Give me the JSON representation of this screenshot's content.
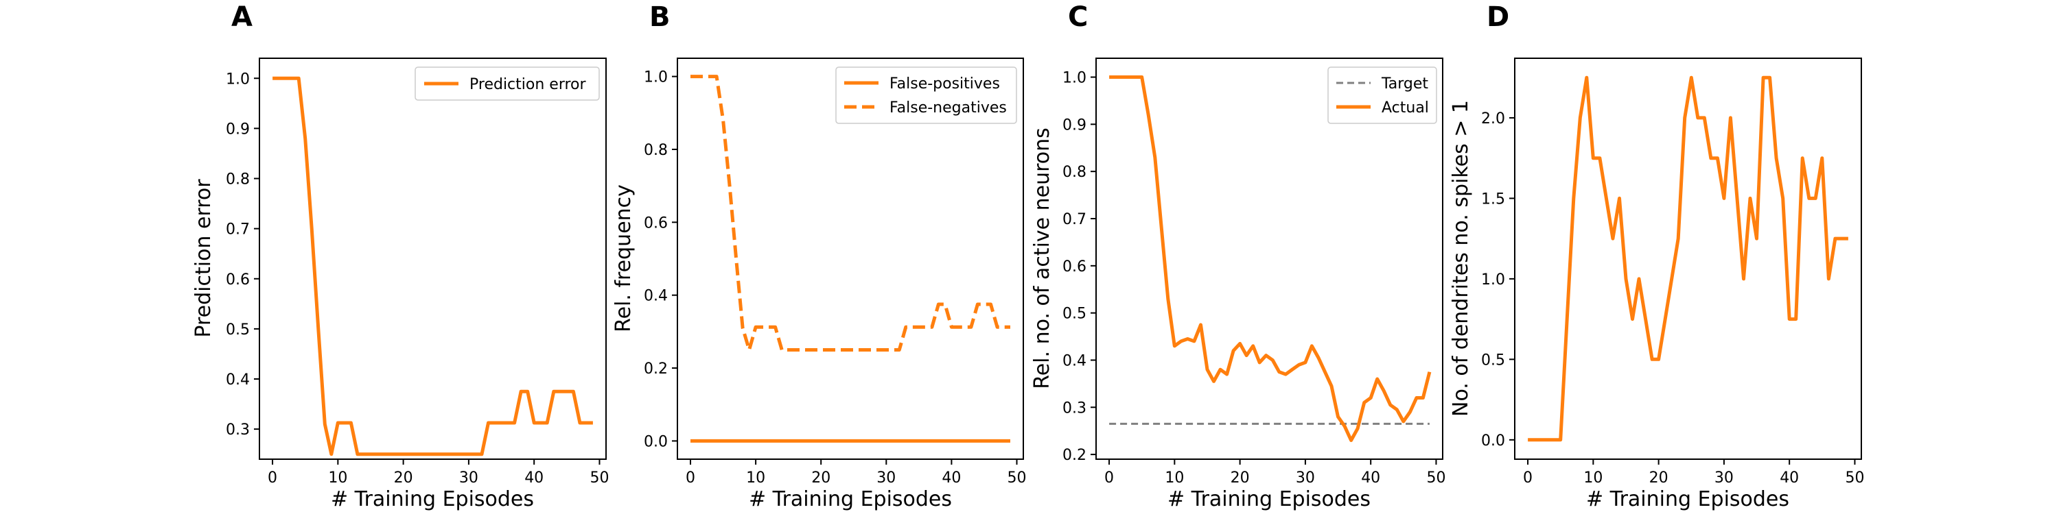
{
  "chart_data": [
    {
      "panel": "A",
      "type": "line",
      "xlabel": "# Training Episodes",
      "ylabel": "Prediction error",
      "xlim": [
        -2,
        51
      ],
      "ylim": [
        0.24,
        1.04
      ],
      "xticks": [
        0,
        10,
        20,
        30,
        40,
        50
      ],
      "yticks": [
        0.3,
        0.4,
        0.5,
        0.6,
        0.7,
        0.8,
        0.9,
        1.0
      ],
      "ytick_labels": [
        "0.3",
        "0.4",
        "0.5",
        "0.6",
        "0.7",
        "0.8",
        "0.9",
        "1.0"
      ],
      "legend": "top-right",
      "series": [
        {
          "name": "Prediction error",
          "color": "#ff7f0e",
          "dash": "solid",
          "x": [
            0,
            1,
            2,
            3,
            4,
            5,
            6,
            7,
            8,
            9,
            10,
            11,
            12,
            13,
            14,
            15,
            16,
            17,
            18,
            19,
            20,
            21,
            22,
            23,
            24,
            25,
            26,
            27,
            28,
            29,
            30,
            31,
            32,
            33,
            34,
            35,
            36,
            37,
            38,
            39,
            40,
            41,
            42,
            43,
            44,
            45,
            46,
            47,
            48,
            49
          ],
          "y": [
            1.0,
            1.0,
            1.0,
            1.0,
            1.0,
            0.88,
            0.7,
            0.5,
            0.31,
            0.25,
            0.3125,
            0.3125,
            0.3125,
            0.25,
            0.25,
            0.25,
            0.25,
            0.25,
            0.25,
            0.25,
            0.25,
            0.25,
            0.25,
            0.25,
            0.25,
            0.25,
            0.25,
            0.25,
            0.25,
            0.25,
            0.25,
            0.25,
            0.25,
            0.3125,
            0.3125,
            0.3125,
            0.3125,
            0.3125,
            0.375,
            0.375,
            0.3125,
            0.3125,
            0.3125,
            0.375,
            0.375,
            0.375,
            0.375,
            0.3125,
            0.3125,
            0.3125
          ]
        }
      ]
    },
    {
      "panel": "B",
      "type": "line",
      "xlabel": "# Training Episodes",
      "ylabel": "Rel. frequency",
      "xlim": [
        -2,
        51
      ],
      "ylim": [
        -0.05,
        1.05
      ],
      "xticks": [
        0,
        10,
        20,
        30,
        40,
        50
      ],
      "yticks": [
        0.0,
        0.2,
        0.4,
        0.6,
        0.8,
        1.0
      ],
      "ytick_labels": [
        "0.0",
        "0.2",
        "0.4",
        "0.6",
        "0.8",
        "1.0"
      ],
      "legend": "top-right",
      "series": [
        {
          "name": "False-positives",
          "color": "#ff7f0e",
          "dash": "solid",
          "x": [
            0,
            1,
            2,
            3,
            4,
            5,
            6,
            7,
            8,
            9,
            10,
            11,
            12,
            13,
            14,
            15,
            16,
            17,
            18,
            19,
            20,
            21,
            22,
            23,
            24,
            25,
            26,
            27,
            28,
            29,
            30,
            31,
            32,
            33,
            34,
            35,
            36,
            37,
            38,
            39,
            40,
            41,
            42,
            43,
            44,
            45,
            46,
            47,
            48,
            49
          ],
          "y": [
            0,
            0,
            0,
            0,
            0,
            0,
            0,
            0,
            0,
            0,
            0,
            0,
            0,
            0,
            0,
            0,
            0,
            0,
            0,
            0,
            0,
            0,
            0,
            0,
            0,
            0,
            0,
            0,
            0,
            0,
            0,
            0,
            0,
            0,
            0,
            0,
            0,
            0,
            0,
            0,
            0,
            0,
            0,
            0,
            0,
            0,
            0,
            0,
            0,
            0
          ]
        },
        {
          "name": "False-negatives",
          "color": "#ff7f0e",
          "dash": "dashed",
          "x": [
            0,
            1,
            2,
            3,
            4,
            5,
            6,
            7,
            8,
            9,
            10,
            11,
            12,
            13,
            14,
            15,
            16,
            17,
            18,
            19,
            20,
            21,
            22,
            23,
            24,
            25,
            26,
            27,
            28,
            29,
            30,
            31,
            32,
            33,
            34,
            35,
            36,
            37,
            38,
            39,
            40,
            41,
            42,
            43,
            44,
            45,
            46,
            47,
            48,
            49
          ],
          "y": [
            1.0,
            1.0,
            1.0,
            1.0,
            1.0,
            0.88,
            0.7,
            0.5,
            0.31,
            0.25,
            0.3125,
            0.3125,
            0.3125,
            0.3125,
            0.25,
            0.25,
            0.25,
            0.25,
            0.25,
            0.25,
            0.25,
            0.25,
            0.25,
            0.25,
            0.25,
            0.25,
            0.25,
            0.25,
            0.25,
            0.25,
            0.25,
            0.25,
            0.25,
            0.3125,
            0.3125,
            0.3125,
            0.3125,
            0.3125,
            0.375,
            0.375,
            0.3125,
            0.3125,
            0.3125,
            0.3125,
            0.375,
            0.375,
            0.375,
            0.3125,
            0.3125,
            0.3125
          ]
        }
      ]
    },
    {
      "panel": "C",
      "type": "line",
      "xlabel": "# Training Episodes",
      "ylabel": "Rel. no. of active neurons",
      "xlim": [
        -2,
        51
      ],
      "ylim": [
        0.19,
        1.04
      ],
      "xticks": [
        0,
        10,
        20,
        30,
        40,
        50
      ],
      "yticks": [
        0.2,
        0.3,
        0.4,
        0.5,
        0.6,
        0.7,
        0.8,
        0.9,
        1.0
      ],
      "ytick_labels": [
        "0.2",
        "0.3",
        "0.4",
        "0.5",
        "0.6",
        "0.7",
        "0.8",
        "0.9",
        "1.0"
      ],
      "legend": "top-right",
      "series": [
        {
          "name": "Target",
          "color": "#808080",
          "dash": "dashed",
          "x": [
            0,
            49
          ],
          "y": [
            0.265,
            0.265
          ]
        },
        {
          "name": "Actual",
          "color": "#ff7f0e",
          "dash": "solid",
          "x": [
            0,
            1,
            2,
            3,
            4,
            5,
            6,
            7,
            8,
            9,
            10,
            11,
            12,
            13,
            14,
            15,
            16,
            17,
            18,
            19,
            20,
            21,
            22,
            23,
            24,
            25,
            26,
            27,
            28,
            29,
            30,
            31,
            32,
            33,
            34,
            35,
            36,
            37,
            38,
            39,
            40,
            41,
            42,
            43,
            44,
            45,
            46,
            47,
            48,
            49
          ],
          "y": [
            1.0,
            1.0,
            1.0,
            1.0,
            1.0,
            1.0,
            0.92,
            0.83,
            0.68,
            0.53,
            0.43,
            0.44,
            0.445,
            0.44,
            0.475,
            0.38,
            0.355,
            0.38,
            0.37,
            0.42,
            0.435,
            0.41,
            0.43,
            0.395,
            0.41,
            0.4,
            0.375,
            0.37,
            0.38,
            0.39,
            0.395,
            0.43,
            0.405,
            0.375,
            0.345,
            0.28,
            0.26,
            0.23,
            0.255,
            0.31,
            0.32,
            0.36,
            0.335,
            0.305,
            0.295,
            0.27,
            0.29,
            0.32,
            0.32,
            0.375
          ]
        }
      ]
    },
    {
      "panel": "D",
      "type": "line",
      "xlabel": "# Training Episodes",
      "ylabel": "No. of dendrites no. spikes > 1",
      "xlim": [
        -2,
        51
      ],
      "ylim": [
        -0.12,
        2.37
      ],
      "xticks": [
        0,
        10,
        20,
        30,
        40,
        50
      ],
      "yticks": [
        0.0,
        0.5,
        1.0,
        1.5,
        2.0
      ],
      "ytick_labels": [
        "0.0",
        "0.5",
        "1.0",
        "1.5",
        "2.0"
      ],
      "legend": "none",
      "series": [
        {
          "name": "",
          "color": "#ff7f0e",
          "dash": "solid",
          "x": [
            0,
            1,
            2,
            3,
            4,
            5,
            6,
            7,
            8,
            9,
            10,
            11,
            12,
            13,
            14,
            15,
            16,
            17,
            18,
            19,
            20,
            21,
            22,
            23,
            24,
            25,
            26,
            27,
            28,
            29,
            30,
            31,
            32,
            33,
            34,
            35,
            36,
            37,
            38,
            39,
            40,
            41,
            42,
            43,
            44,
            45,
            46,
            47,
            48,
            49
          ],
          "y": [
            0,
            0,
            0,
            0,
            0,
            0,
            0.75,
            1.5,
            2.0,
            2.25,
            1.75,
            1.75,
            1.5,
            1.25,
            1.5,
            1.0,
            0.75,
            1.0,
            0.75,
            0.5,
            0.5,
            0.75,
            1.0,
            1.25,
            2.0,
            2.25,
            2.0,
            2.0,
            1.75,
            1.75,
            1.5,
            2.0,
            1.5,
            1.0,
            1.5,
            1.25,
            2.25,
            2.25,
            1.75,
            1.5,
            0.75,
            0.75,
            1.75,
            1.5,
            1.5,
            1.75,
            1.0,
            1.25,
            1.25,
            1.25
          ]
        }
      ]
    }
  ]
}
